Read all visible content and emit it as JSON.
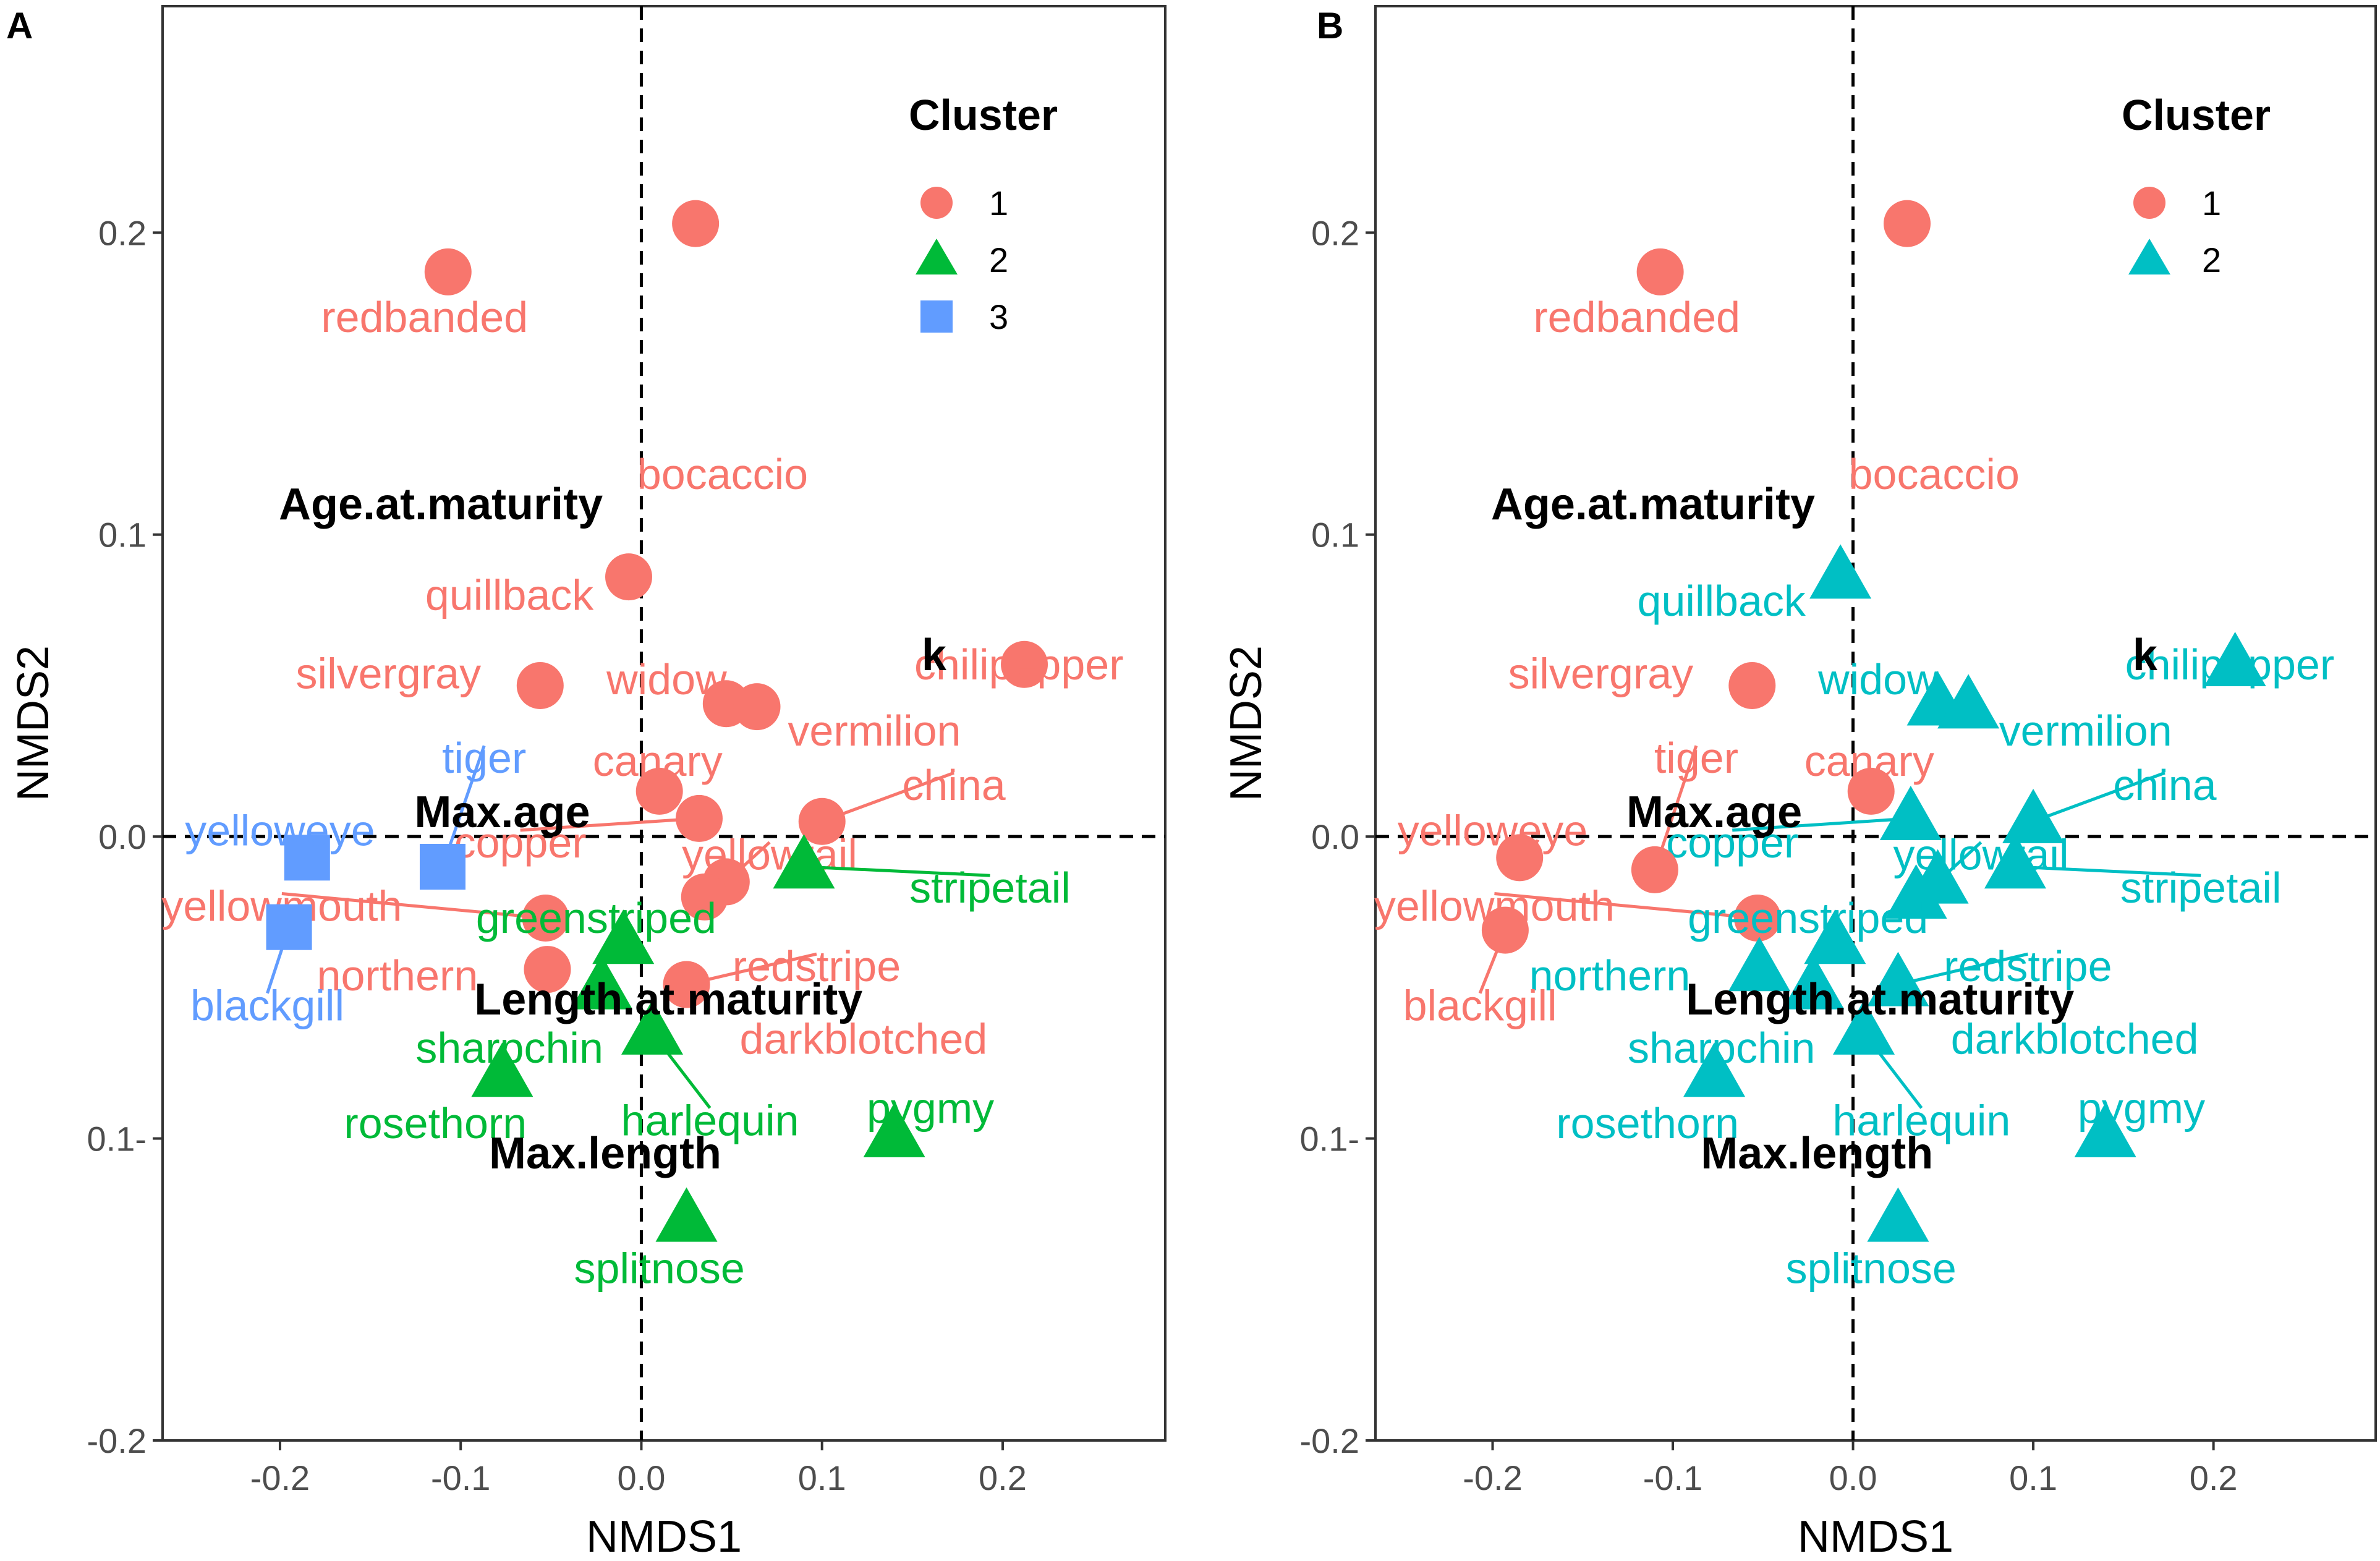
{
  "chart_data": [
    {
      "type": "scatter",
      "panel_tag": "A",
      "xlabel": "NMDS1",
      "ylabel": "NMDS2",
      "xlim": [
        -0.265,
        0.29
      ],
      "ylim": [
        -0.2,
        0.275
      ],
      "xticks": [
        -0.2,
        -0.1,
        0.0,
        0.1,
        0.2
      ],
      "yticks": [
        -0.2,
        -0.1,
        0.0,
        0.1,
        0.2
      ],
      "xtick_labels": [
        "-0.2",
        "-0.1",
        "0.0",
        "0.1",
        "0.2"
      ],
      "ytick_labels": [
        "-0.2",
        "0.1-",
        "0.0",
        "0.1",
        "0.2"
      ],
      "reference_lines": {
        "x": 0,
        "y": 0,
        "style": "dashed"
      },
      "legend": {
        "title": "Cluster",
        "position": "top-right",
        "entries": [
          {
            "label": "1",
            "shape": "circle",
            "color": "#F8766D"
          },
          {
            "label": "2",
            "shape": "triangle",
            "color": "#00BA38"
          },
          {
            "label": "3",
            "shape": "square",
            "color": "#619CFF"
          }
        ]
      },
      "points": [
        {
          "name": "bocaccio",
          "x": 0.03,
          "y": 0.203,
          "cluster": "1",
          "lx": 0.045,
          "ly": 0.12,
          "leader": false
        },
        {
          "name": "redbanded",
          "x": -0.107,
          "y": 0.187,
          "cluster": "1",
          "lx": -0.12,
          "ly": 0.172,
          "leader": false
        },
        {
          "name": "quillback",
          "x": -0.007,
          "y": 0.086,
          "cluster": "1",
          "lx": -0.073,
          "ly": 0.08,
          "leader": false
        },
        {
          "name": "silvergray",
          "x": -0.056,
          "y": 0.05,
          "cluster": "1",
          "lx": -0.14,
          "ly": 0.054,
          "leader": false
        },
        {
          "name": "widow",
          "x": 0.047,
          "y": 0.044,
          "cluster": "1",
          "lx": 0.014,
          "ly": 0.052,
          "leader": false
        },
        {
          "name": "vermilion",
          "x": 0.064,
          "y": 0.043,
          "cluster": "1",
          "lx": 0.129,
          "ly": 0.035,
          "leader": false
        },
        {
          "name": "chilipepper",
          "x": 0.212,
          "y": 0.057,
          "cluster": "1",
          "lx": 0.209,
          "ly": 0.057,
          "leader": false
        },
        {
          "name": "canary",
          "x": 0.01,
          "y": 0.015,
          "cluster": "1",
          "lx": 0.009,
          "ly": 0.025,
          "leader": false
        },
        {
          "name": "copper",
          "x": 0.032,
          "y": 0.006,
          "cluster": "1",
          "lx": -0.067,
          "ly": -0.002,
          "leader": true
        },
        {
          "name": "yellowtail",
          "x": 0.047,
          "y": -0.015,
          "cluster": "1",
          "lx": 0.071,
          "ly": -0.006,
          "leader": true
        },
        {
          "name": "china",
          "x": 0.1,
          "y": 0.005,
          "cluster": "1",
          "lx": 0.173,
          "ly": 0.017,
          "leader": true
        },
        {
          "name": "yellowmouth",
          "x": -0.053,
          "y": -0.027,
          "cluster": "1",
          "lx": -0.199,
          "ly": -0.023,
          "leader": true
        },
        {
          "name": "northern",
          "x": -0.052,
          "y": -0.044,
          "cluster": "1",
          "lx": -0.135,
          "ly": -0.046,
          "leader": false
        },
        {
          "name": "redstripe",
          "x": 0.025,
          "y": -0.049,
          "cluster": "1",
          "lx": 0.097,
          "ly": -0.043,
          "leader": true
        },
        {
          "name": "darkblotched",
          "x": 0.035,
          "y": -0.02,
          "cluster": "1",
          "lx": 0.123,
          "ly": -0.067,
          "leader": false
        },
        {
          "name": "greenstriped",
          "x": -0.01,
          "y": -0.035,
          "cluster": "2",
          "lx": -0.025,
          "ly": -0.027,
          "leader": false
        },
        {
          "name": "stripetail",
          "x": 0.09,
          "y": -0.01,
          "cluster": "2",
          "lx": 0.193,
          "ly": -0.017,
          "leader": true
        },
        {
          "name": "sharpchin",
          "x": -0.022,
          "y": -0.05,
          "cluster": "2",
          "lx": -0.073,
          "ly": -0.07,
          "leader": false
        },
        {
          "name": "harlequin",
          "x": 0.006,
          "y": -0.065,
          "cluster": "2",
          "lx": 0.038,
          "ly": -0.094,
          "leader": true
        },
        {
          "name": "rosethorn",
          "x": -0.077,
          "y": -0.079,
          "cluster": "2",
          "lx": -0.114,
          "ly": -0.095,
          "leader": false
        },
        {
          "name": "pygmy",
          "x": 0.14,
          "y": -0.099,
          "cluster": "2",
          "lx": 0.16,
          "ly": -0.09,
          "leader": false
        },
        {
          "name": "splitnose",
          "x": 0.025,
          "y": -0.127,
          "cluster": "2",
          "lx": 0.01,
          "ly": -0.143,
          "leader": false
        },
        {
          "name": "tiger",
          "x": -0.11,
          "y": -0.01,
          "cluster": "3",
          "lx": -0.087,
          "ly": 0.026,
          "leader": true
        },
        {
          "name": "yelloweye",
          "x": -0.185,
          "y": -0.007,
          "cluster": "3",
          "lx": -0.2,
          "ly": 0.002,
          "leader": false
        },
        {
          "name": "blackgill",
          "x": -0.195,
          "y": -0.03,
          "cluster": "3",
          "lx": -0.207,
          "ly": -0.056,
          "leader": true
        }
      ],
      "variables": [
        {
          "name": "Age.at.maturity",
          "x": -0.111,
          "y": 0.11
        },
        {
          "name": "k",
          "x": 0.162,
          "y": 0.06
        },
        {
          "name": "Max.age",
          "x": -0.077,
          "y": 0.008
        },
        {
          "name": "Length.at.maturity",
          "x": 0.015,
          "y": -0.054
        },
        {
          "name": "Max.length",
          "x": -0.02,
          "y": -0.105
        }
      ]
    },
    {
      "type": "scatter",
      "panel_tag": "B",
      "xlabel": "NMDS1",
      "ylabel": "NMDS2",
      "xlim": [
        -0.265,
        0.29
      ],
      "ylim": [
        -0.2,
        0.275
      ],
      "xticks": [
        -0.2,
        -0.1,
        0.0,
        0.1,
        0.2
      ],
      "yticks": [
        -0.2,
        -0.1,
        0.0,
        0.1,
        0.2
      ],
      "xtick_labels": [
        "-0.2",
        "-0.1",
        "0.0",
        "0.1",
        "0.2"
      ],
      "ytick_labels": [
        "-0.2",
        "0.1-",
        "0.0",
        "0.1",
        "0.2"
      ],
      "reference_lines": {
        "x": 0,
        "y": 0,
        "style": "dashed"
      },
      "legend": {
        "title": "Cluster",
        "position": "top-right",
        "entries": [
          {
            "label": "1",
            "shape": "circle",
            "color": "#F8766D"
          },
          {
            "label": "2",
            "shape": "triangle",
            "color": "#00BFC4"
          }
        ]
      },
      "points": [
        {
          "name": "bocaccio",
          "x": 0.03,
          "y": 0.203,
          "cluster": "1",
          "lx": 0.045,
          "ly": 0.12,
          "leader": false
        },
        {
          "name": "redbanded",
          "x": -0.107,
          "y": 0.187,
          "cluster": "1",
          "lx": -0.12,
          "ly": 0.172,
          "leader": false
        },
        {
          "name": "quillback",
          "x": -0.007,
          "y": 0.086,
          "cluster": "2",
          "lx": -0.073,
          "ly": 0.078,
          "leader": false
        },
        {
          "name": "silvergray",
          "x": -0.056,
          "y": 0.05,
          "cluster": "1",
          "lx": -0.14,
          "ly": 0.054,
          "leader": false
        },
        {
          "name": "widow",
          "x": 0.047,
          "y": 0.044,
          "cluster": "2",
          "lx": 0.014,
          "ly": 0.052,
          "leader": false
        },
        {
          "name": "vermilion",
          "x": 0.064,
          "y": 0.043,
          "cluster": "2",
          "lx": 0.129,
          "ly": 0.035,
          "leader": false
        },
        {
          "name": "chilipepper",
          "x": 0.212,
          "y": 0.057,
          "cluster": "2",
          "lx": 0.209,
          "ly": 0.057,
          "leader": false
        },
        {
          "name": "canary",
          "x": 0.01,
          "y": 0.015,
          "cluster": "1",
          "lx": 0.009,
          "ly": 0.025,
          "leader": false
        },
        {
          "name": "copper",
          "x": 0.032,
          "y": 0.006,
          "cluster": "2",
          "lx": -0.067,
          "ly": -0.002,
          "leader": true
        },
        {
          "name": "yellowtail",
          "x": 0.047,
          "y": -0.015,
          "cluster": "2",
          "lx": 0.071,
          "ly": -0.006,
          "leader": true
        },
        {
          "name": "china",
          "x": 0.1,
          "y": 0.005,
          "cluster": "2",
          "lx": 0.173,
          "ly": 0.017,
          "leader": true
        },
        {
          "name": "yellowmouth",
          "x": -0.053,
          "y": -0.027,
          "cluster": "1",
          "lx": -0.199,
          "ly": -0.023,
          "leader": true
        },
        {
          "name": "northern",
          "x": -0.052,
          "y": -0.044,
          "cluster": "2",
          "lx": -0.135,
          "ly": -0.046,
          "leader": false
        },
        {
          "name": "redstripe",
          "x": 0.025,
          "y": -0.049,
          "cluster": "2",
          "lx": 0.097,
          "ly": -0.043,
          "leader": true
        },
        {
          "name": "darkblotched",
          "x": 0.035,
          "y": -0.02,
          "cluster": "2",
          "lx": 0.123,
          "ly": -0.067,
          "leader": false
        },
        {
          "name": "greenstriped",
          "x": -0.01,
          "y": -0.035,
          "cluster": "2",
          "lx": -0.025,
          "ly": -0.027,
          "leader": false
        },
        {
          "name": "stripetail",
          "x": 0.09,
          "y": -0.01,
          "cluster": "2",
          "lx": 0.193,
          "ly": -0.017,
          "leader": true
        },
        {
          "name": "sharpchin",
          "x": -0.022,
          "y": -0.05,
          "cluster": "2",
          "lx": -0.073,
          "ly": -0.07,
          "leader": false
        },
        {
          "name": "harlequin",
          "x": 0.006,
          "y": -0.065,
          "cluster": "2",
          "lx": 0.038,
          "ly": -0.094,
          "leader": true
        },
        {
          "name": "rosethorn",
          "x": -0.077,
          "y": -0.079,
          "cluster": "2",
          "lx": -0.114,
          "ly": -0.095,
          "leader": false
        },
        {
          "name": "pygmy",
          "x": 0.14,
          "y": -0.099,
          "cluster": "2",
          "lx": 0.16,
          "ly": -0.09,
          "leader": false
        },
        {
          "name": "splitnose",
          "x": 0.025,
          "y": -0.127,
          "cluster": "2",
          "lx": 0.01,
          "ly": -0.143,
          "leader": false
        },
        {
          "name": "tiger",
          "x": -0.11,
          "y": -0.011,
          "cluster": "1",
          "lx": -0.087,
          "ly": 0.026,
          "leader": true
        },
        {
          "name": "yelloweye",
          "x": -0.185,
          "y": -0.007,
          "cluster": "1",
          "lx": -0.2,
          "ly": 0.002,
          "leader": false
        },
        {
          "name": "blackgill",
          "x": -0.193,
          "y": -0.031,
          "cluster": "1",
          "lx": -0.207,
          "ly": -0.056,
          "leader": true
        }
      ],
      "variables": [
        {
          "name": "Age.at.maturity",
          "x": -0.111,
          "y": 0.11
        },
        {
          "name": "k",
          "x": 0.162,
          "y": 0.06
        },
        {
          "name": "Max.age",
          "x": -0.077,
          "y": 0.008
        },
        {
          "name": "Length.at.maturity",
          "x": 0.015,
          "y": -0.054
        },
        {
          "name": "Max.length",
          "x": -0.02,
          "y": -0.105
        }
      ]
    }
  ]
}
